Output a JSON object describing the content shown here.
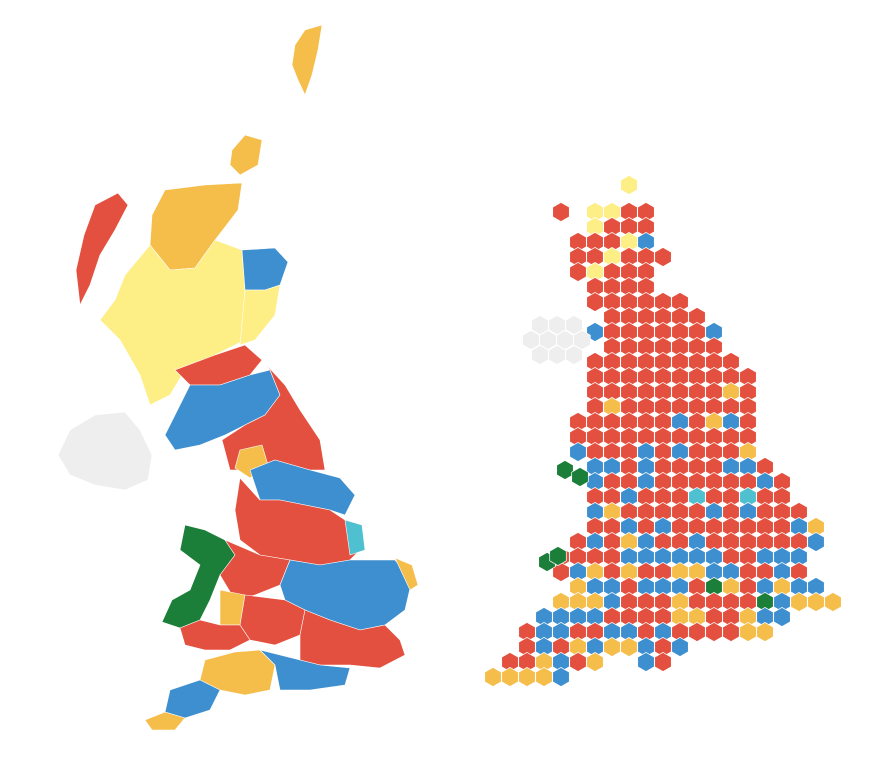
{
  "map": {
    "palette": [
      "#e4503f",
      "#3e8fcf",
      "#f5bd4a",
      "#fdee86",
      "#1b7f3a",
      "#4fc0d0",
      "#eeeeee"
    ]
  }
}
